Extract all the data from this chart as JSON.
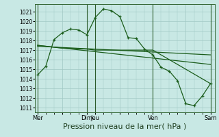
{
  "bg_color": "#c8e8e4",
  "grid_color": "#a0c8c4",
  "line_color": "#1a5c1a",
  "xlabel": "Pression niveau de la mer( hPa )",
  "xlabel_fontsize": 8,
  "ylim": [
    1010.5,
    1021.8
  ],
  "yticks": [
    1011,
    1012,
    1013,
    1014,
    1015,
    1016,
    1017,
    1018,
    1019,
    1020,
    1021
  ],
  "xtick_labels": [
    "Mer",
    "",
    "Dim",
    "Jeu",
    "",
    "Ven",
    "",
    "Sam"
  ],
  "xtick_positions": [
    0,
    3,
    6,
    7,
    10,
    14,
    18,
    21
  ],
  "vlines": [
    0,
    6,
    7,
    14,
    21
  ],
  "n_points": 22,
  "series1_x": [
    0,
    1,
    2,
    3,
    4,
    5,
    6,
    7,
    8,
    9,
    10,
    11,
    12,
    13,
    14,
    15,
    16,
    17,
    18,
    19,
    20,
    21
  ],
  "series1_y": [
    1014.4,
    1015.3,
    1018.1,
    1018.8,
    1019.2,
    1019.1,
    1018.6,
    1020.4,
    1021.3,
    1021.1,
    1020.5,
    1018.3,
    1018.2,
    1017.1,
    1016.5,
    1015.2,
    1014.8,
    1013.8,
    1011.4,
    1011.2,
    1012.2,
    1013.5
  ],
  "series2_x": [
    0,
    3,
    6,
    7,
    14,
    21
  ],
  "series2_y": [
    1017.5,
    1017.2,
    1017.1,
    1017.0,
    1017.0,
    1013.5
  ],
  "series3_x": [
    0,
    21
  ],
  "series3_y": [
    1017.5,
    1015.5
  ],
  "series4_x": [
    0,
    21
  ],
  "series4_y": [
    1017.4,
    1016.5
  ]
}
